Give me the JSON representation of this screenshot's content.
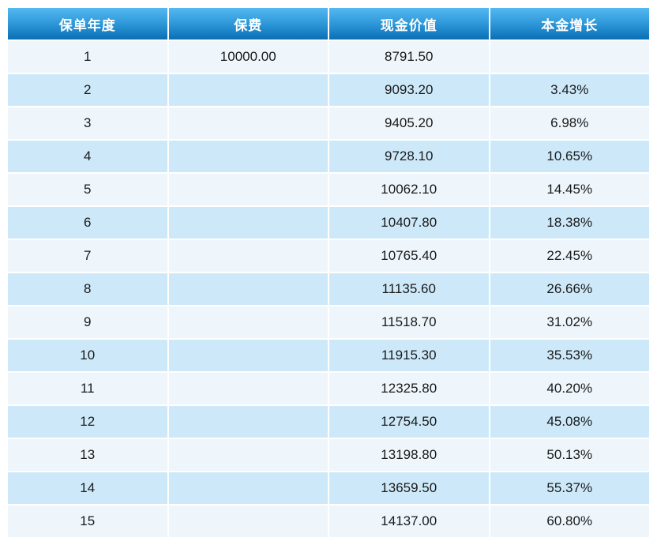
{
  "chart_data": {
    "type": "table",
    "title": "",
    "columns": [
      "保单年度",
      "保费",
      "现金价值",
      "本金增长"
    ],
    "rows": [
      [
        "1",
        "10000.00",
        "8791.50",
        ""
      ],
      [
        "2",
        "",
        "9093.20",
        "3.43%"
      ],
      [
        "3",
        "",
        "9405.20",
        "6.98%"
      ],
      [
        "4",
        "",
        "9728.10",
        "10.65%"
      ],
      [
        "5",
        "",
        "10062.10",
        "14.45%"
      ],
      [
        "6",
        "",
        "10407.80",
        "18.38%"
      ],
      [
        "7",
        "",
        "10765.40",
        "22.45%"
      ],
      [
        "8",
        "",
        "11135.60",
        "26.66%"
      ],
      [
        "9",
        "",
        "11518.70",
        "31.02%"
      ],
      [
        "10",
        "",
        "11915.30",
        "35.53%"
      ],
      [
        "11",
        "",
        "12325.80",
        "40.20%"
      ],
      [
        "12",
        "",
        "12754.50",
        "45.08%"
      ],
      [
        "13",
        "",
        "13198.80",
        "50.13%"
      ],
      [
        "14",
        "",
        "13659.50",
        "55.37%"
      ],
      [
        "15",
        "",
        "14137.00",
        "60.80%"
      ]
    ],
    "layout": {
      "grid": "2px white gaps between cells",
      "zebra_striping": true,
      "alignment": "center"
    }
  },
  "colors": {
    "header_gradient_top": "#55b9f1",
    "header_gradient_bottom": "#0a6fb3",
    "row_odd": "#eef6fc",
    "row_even": "#cde9f9",
    "text": "#1a1a1a",
    "header_text": "#ffffff",
    "page_background": "#ffffff"
  }
}
